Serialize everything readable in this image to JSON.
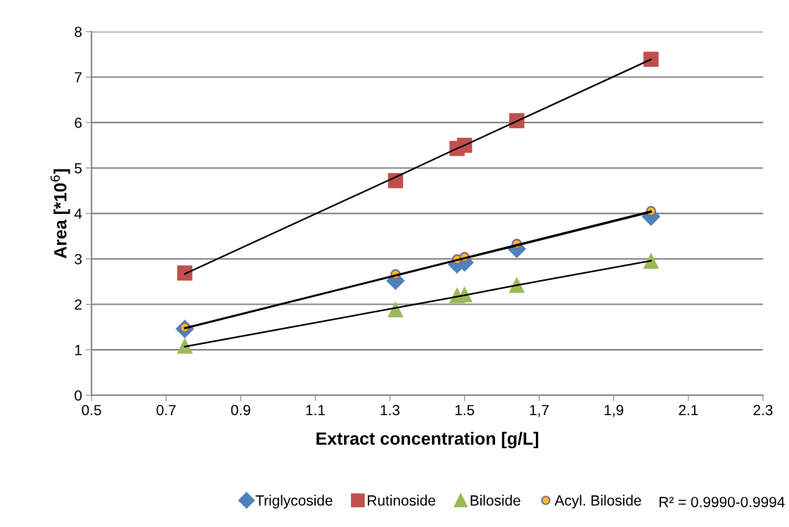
{
  "chart_data": {
    "type": "scatter",
    "xlabel": "Extract concentration [g/L]",
    "ylabel": "Area [*10$^{6}$]",
    "x": [
      0.75,
      1.315,
      1.48,
      1.5,
      1.64,
      2.0
    ],
    "series": [
      {
        "name": "Triglycoside",
        "color": "#4f81bd",
        "marker": "diamond",
        "values": [
          1.46,
          2.52,
          2.88,
          2.92,
          3.22,
          3.93
        ]
      },
      {
        "name": "Rutinoside",
        "color": "#c0504d",
        "marker": "square",
        "values": [
          2.69,
          4.72,
          5.43,
          5.5,
          6.04,
          7.39
        ]
      },
      {
        "name": "Biloside",
        "color": "#9bbb59",
        "marker": "triangle",
        "values": [
          1.08,
          1.88,
          2.19,
          2.21,
          2.42,
          2.95
        ]
      },
      {
        "name": "Acyl. Biloside",
        "color": "#ffc000",
        "marker": "circle",
        "values": [
          1.49,
          2.66,
          2.99,
          3.04,
          3.33,
          4.05
        ]
      },
      {
        "type": "line",
        "color": "#000000",
        "values": [
          1.47,
          2.63,
          2.97,
          3.01,
          3.29,
          4.03
        ]
      },
      {
        "type": "line",
        "color": "#000000",
        "values": [
          2.67,
          4.8,
          5.43,
          5.5,
          6.03,
          7.39
        ]
      },
      {
        "type": "line",
        "color": "#000000",
        "values": [
          1.07,
          1.92,
          2.17,
          2.2,
          2.42,
          2.96
        ]
      },
      {
        "type": "line",
        "color": "#000000",
        "values": [
          1.48,
          2.64,
          2.98,
          3.02,
          3.31,
          4.05
        ]
      }
    ],
    "xlim": [
      0.5,
      2.3
    ],
    "xticks": [
      0.5,
      0.7,
      0.9,
      1.1,
      1.3,
      1.5,
      {
        "value": 1.7,
        "label": "1,7"
      },
      {
        "value": 1.9,
        "label": "1,9"
      },
      2.1,
      2.3
    ],
    "ylim": [
      0,
      8
    ],
    "yticks": [
      0,
      1,
      2,
      3,
      4,
      5,
      6,
      7,
      8
    ],
    "grid": "y",
    "legend": "bottom",
    "annotations": [
      "R² = 0.9990-0.9994"
    ]
  }
}
